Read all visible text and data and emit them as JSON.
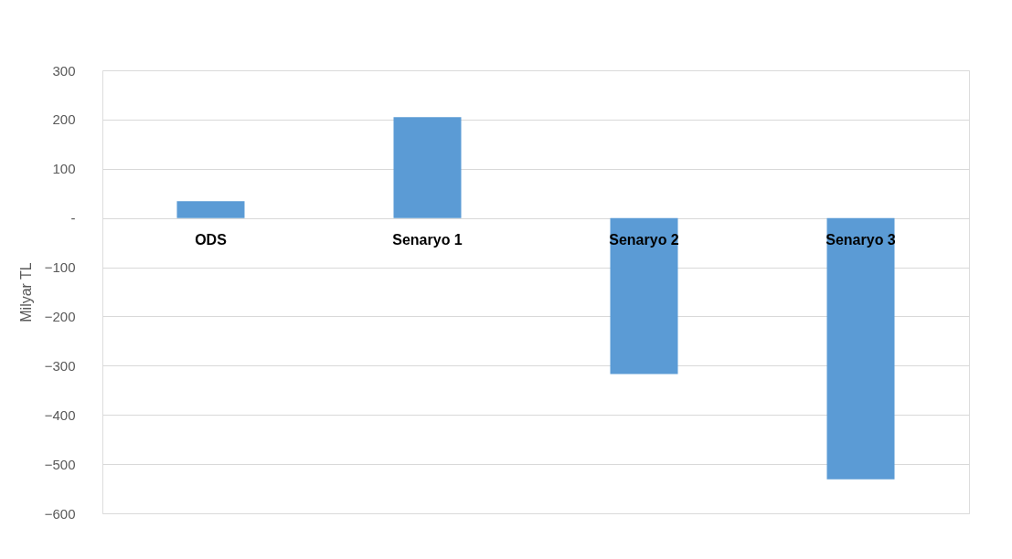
{
  "chart_data": {
    "type": "bar",
    "ylabel": "Milyar TL",
    "categories": [
      "ODS",
      "Senaryo 1",
      "Senaryo 2",
      "Senaryo 3"
    ],
    "values": [
      34,
      205,
      -317,
      -531
    ],
    "color": "#5b9bd5",
    "ylim": [
      -600,
      300
    ],
    "yticks": [
      -600,
      -500,
      -400,
      -300,
      -200,
      -100,
      {
        "value": 0,
        "label": "-"
      },
      100,
      200,
      300
    ],
    "grid": "y"
  }
}
